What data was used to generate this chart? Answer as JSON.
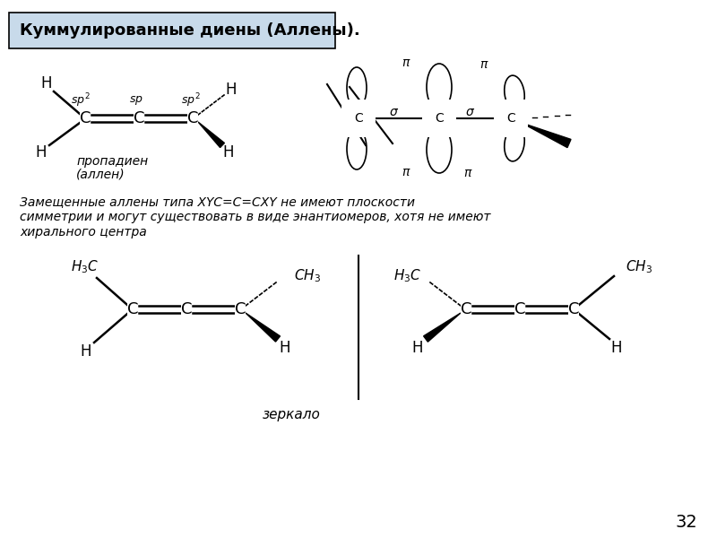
{
  "title": "Куммулированные диены (Аллены).",
  "title_bg": "#c8daea",
  "title_fontsize": 13,
  "page_number": "32",
  "body_text_line1": "Замещенные аллены типа XYC=C=CXY не имеют плоскости",
  "body_text_line2": "симметрии и могут существовать в виде энантиомеров, хотя не имеют",
  "body_text_line3": "хирального центра",
  "mirror_label": "зеркало",
  "background": "#ffffff"
}
